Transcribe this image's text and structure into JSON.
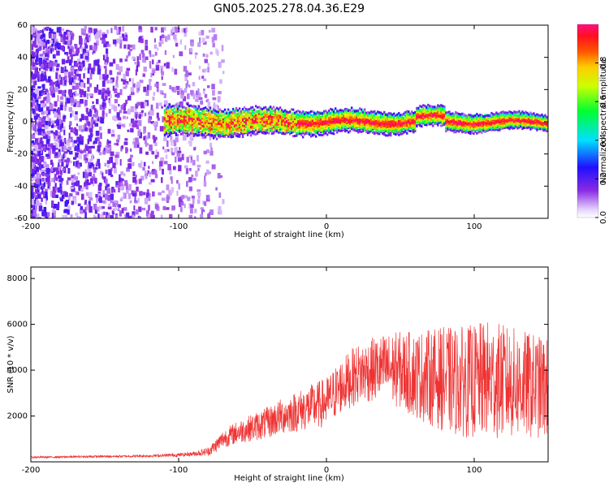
{
  "page": {
    "title": "GN05.2025.278.04.36.E29"
  },
  "chart_data": [
    {
      "type": "heatmap",
      "title": "GN05.2025.278.04.36.E29",
      "xlabel": "Height of straight line (km)",
      "ylabel": "Frequency (Hz)",
      "xlim": [
        -200,
        150
      ],
      "ylim": [
        -60,
        60
      ],
      "xticks": [
        -200,
        -100,
        0,
        100
      ],
      "yticks": [
        60,
        40,
        20,
        0,
        -20,
        -40,
        -60
      ],
      "colorbar": {
        "label": "Normalized spectral amplitude",
        "range": [
          0.0,
          1.0
        ],
        "ticks": [
          0.0,
          0.2,
          0.4,
          0.6,
          0.8
        ],
        "colormap": "rainbow (white-violet-blue-cyan-green-yellow-orange-red-magenta)"
      },
      "description_series": [
        {
          "name": "scattered noise region",
          "x_range": [
            -200,
            -70
          ],
          "freq_range": [
            -60,
            60
          ],
          "amplitude": [
            0.05,
            0.25
          ]
        },
        {
          "name": "central frequency band",
          "x_range": [
            -110,
            150
          ],
          "freq_center": 0,
          "freq_halfwidth": [
            8,
            4
          ],
          "peak_amplitude": 0.95
        }
      ]
    },
    {
      "type": "line",
      "xlabel": "Height of straight line (km)",
      "ylabel": "SNR (10 * v/v)",
      "xlim": [
        -200,
        150
      ],
      "ylim": [
        0,
        8500
      ],
      "xticks": [
        -200,
        -100,
        0,
        100
      ],
      "yticks": [
        2000,
        4000,
        6000,
        8000
      ],
      "series": [
        {
          "name": "SNR",
          "color": "#ee3333",
          "x": [
            -200,
            -180,
            -160,
            -140,
            -120,
            -100,
            -90,
            -80,
            -75,
            -70,
            -60,
            -50,
            -40,
            -30,
            -20,
            -10,
            0,
            10,
            20,
            30,
            40,
            50,
            60,
            70,
            80,
            90,
            100,
            110,
            120,
            130,
            140,
            150
          ],
          "values": [
            200,
            210,
            230,
            240,
            260,
            300,
            350,
            450,
            700,
            1000,
            1300,
            1500,
            1700,
            2000,
            2200,
            2400,
            2600,
            3300,
            3800,
            4000,
            4100,
            4000,
            3800,
            3700,
            3600,
            3500,
            3500,
            3600,
            3500,
            3400,
            3300,
            3200
          ],
          "noise_amplitude": [
            40,
            40,
            50,
            50,
            60,
            80,
            100,
            200,
            300,
            400,
            500,
            600,
            700,
            800,
            900,
            1000,
            1100,
            1200,
            1300,
            1400,
            1500,
            1700,
            1900,
            2100,
            2300,
            2400,
            2500,
            2600,
            2500,
            2400,
            2300,
            2200
          ]
        }
      ]
    }
  ]
}
